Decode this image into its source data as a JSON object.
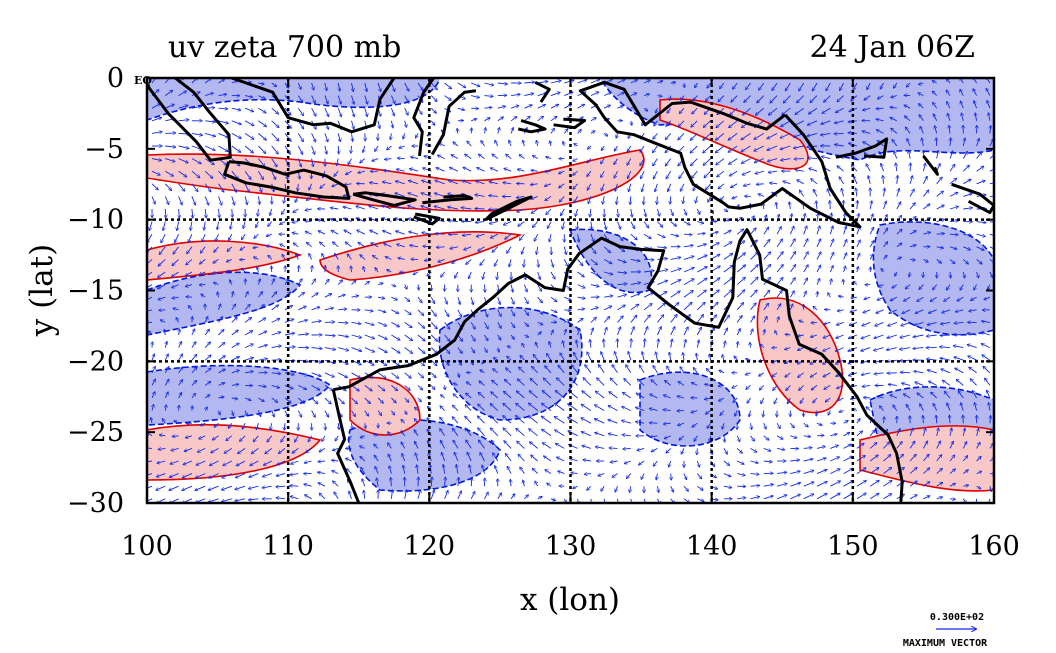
{
  "title_left": "uv zeta 700 mb",
  "title_right": "24 Jan 06Z",
  "equator_label": "EQ",
  "xaxis": {
    "label": "x (lon)",
    "range": [
      100,
      160
    ],
    "ticks": [
      {
        "value": 100,
        "label": "100"
      },
      {
        "value": 110,
        "label": "110"
      },
      {
        "value": 120,
        "label": "120"
      },
      {
        "value": 130,
        "label": "130"
      },
      {
        "value": 140,
        "label": "140"
      },
      {
        "value": 150,
        "label": "150"
      },
      {
        "value": 160,
        "label": "160"
      }
    ]
  },
  "yaxis": {
    "label": "y (lat)",
    "range": [
      -30,
      0
    ],
    "ticks": [
      {
        "value": 0,
        "label": "0"
      },
      {
        "value": -5,
        "label": "−5"
      },
      {
        "value": -10,
        "label": "−10"
      },
      {
        "value": -15,
        "label": "−15"
      },
      {
        "value": -20,
        "label": "−20"
      },
      {
        "value": -25,
        "label": "−25"
      },
      {
        "value": -30,
        "label": "−30"
      }
    ]
  },
  "vector_key": {
    "value_label": "0.300E+02",
    "caption": "MAXIMUM VECTOR"
  },
  "colors": {
    "positive_fill": "#f8c8c8",
    "positive_line": "#e00000",
    "negative_fill": "#b4b8f0",
    "negative_line": "#0018e0",
    "vector": "#1028e8",
    "coast": "#000000",
    "grid": "#000000"
  },
  "map_data": {
    "gridlines_lon": [
      110,
      120,
      130,
      140,
      150
    ],
    "gridlines_lat": [
      -10,
      -20
    ],
    "coastlines": [
      [
        [
          113.2,
          -22
        ],
        [
          113.6,
          -23.8
        ],
        [
          114.0,
          -25.5
        ],
        [
          113.5,
          -26.5
        ],
        [
          114.4,
          -28.5
        ],
        [
          115.0,
          -30
        ]
      ],
      [
        [
          113.2,
          -22
        ],
        [
          114.3,
          -21.8
        ],
        [
          116.5,
          -20.6
        ],
        [
          118.5,
          -20.3
        ],
        [
          120.5,
          -19.5
        ],
        [
          121.8,
          -18.5
        ],
        [
          122.5,
          -17.2
        ],
        [
          123.5,
          -16.3
        ],
        [
          124.5,
          -15.5
        ],
        [
          125.6,
          -14.5
        ],
        [
          126.8,
          -13.9
        ],
        [
          128.2,
          -14.8
        ],
        [
          129.5,
          -15
        ],
        [
          129.8,
          -13.5
        ],
        [
          130.6,
          -12.4
        ],
        [
          132.2,
          -11.3
        ],
        [
          133.5,
          -11.9
        ],
        [
          135,
          -12.1
        ],
        [
          136.6,
          -12.2
        ],
        [
          136.2,
          -13.6
        ],
        [
          135.5,
          -14.8
        ],
        [
          137,
          -16
        ],
        [
          138.8,
          -17.3
        ],
        [
          140.5,
          -17.6
        ],
        [
          141.5,
          -15.5
        ],
        [
          141.6,
          -13
        ],
        [
          142,
          -11.5
        ],
        [
          142.5,
          -10.7
        ],
        [
          143.4,
          -12.5
        ],
        [
          143.6,
          -14.2
        ],
        [
          145.3,
          -15
        ],
        [
          145.5,
          -16.8
        ],
        [
          146.2,
          -18.8
        ],
        [
          147.8,
          -19.5
        ],
        [
          149,
          -20.8
        ],
        [
          150.3,
          -22.5
        ],
        [
          151,
          -23.8
        ],
        [
          152.5,
          -25.2
        ],
        [
          153.1,
          -26.5
        ],
        [
          153.5,
          -28.5
        ],
        [
          153.4,
          -30
        ]
      ],
      [
        [
          145.2,
          -2.6
        ],
        [
          146.5,
          -4
        ],
        [
          147.8,
          -5.9
        ],
        [
          148.4,
          -7.8
        ],
        [
          149.5,
          -9.5
        ],
        [
          150.5,
          -10.5
        ],
        [
          149,
          -10.2
        ],
        [
          147,
          -9.2
        ],
        [
          145,
          -7.8
        ],
        [
          143.5,
          -8.9
        ],
        [
          142,
          -9.2
        ],
        [
          141.2,
          -9.1
        ],
        [
          140.8,
          -8.8
        ],
        [
          139.5,
          -8
        ],
        [
          138.7,
          -7.5
        ],
        [
          138.1,
          -6.3
        ],
        [
          137.8,
          -5.3
        ],
        [
          136,
          -4.6
        ],
        [
          134.5,
          -4
        ],
        [
          133.3,
          -3.8
        ],
        [
          132.4,
          -2.8
        ],
        [
          131.8,
          -1.9
        ],
        [
          130.7,
          -0.9
        ],
        [
          132.4,
          -0.3
        ],
        [
          133.8,
          -0.8
        ],
        [
          135.3,
          -3.3
        ],
        [
          137.2,
          -1.8
        ],
        [
          138.5,
          -1.7
        ],
        [
          140.8,
          -2.5
        ],
        [
          142.5,
          -3.2
        ],
        [
          143.9,
          -3.6
        ],
        [
          145.2,
          -2.6
        ]
      ],
      [
        [
          105.8,
          -5.9
        ],
        [
          106.9,
          -6
        ],
        [
          108.3,
          -6.3
        ],
        [
          109.8,
          -6.8
        ],
        [
          111.1,
          -6.5
        ],
        [
          112.7,
          -6.9
        ],
        [
          114.1,
          -7.7
        ],
        [
          114.3,
          -8.5
        ],
        [
          112.5,
          -8.4
        ],
        [
          110.5,
          -8.1
        ],
        [
          108.8,
          -7.7
        ],
        [
          107,
          -7.4
        ],
        [
          105.5,
          -6.8
        ],
        [
          105.8,
          -5.9
        ]
      ],
      [
        [
          100,
          -0.5
        ],
        [
          101.5,
          -2.5
        ],
        [
          103.5,
          -4.5
        ],
        [
          104.5,
          -5.8
        ],
        [
          105.9,
          -5.6
        ],
        [
          105.8,
          -4
        ],
        [
          104.5,
          -2.5
        ],
        [
          103.3,
          -1
        ],
        [
          102,
          0
        ]
      ],
      [
        [
          106,
          0
        ],
        [
          108.9,
          -1
        ],
        [
          110,
          -2.8
        ],
        [
          111.8,
          -3.3
        ],
        [
          113,
          -3.2
        ],
        [
          114.5,
          -3.8
        ],
        [
          116.1,
          -3.3
        ],
        [
          116.5,
          -1.5
        ],
        [
          117.5,
          0
        ]
      ],
      [
        [
          119.3,
          -5.5
        ],
        [
          119.5,
          -3.8
        ],
        [
          118.9,
          -2.8
        ],
        [
          119.6,
          -1
        ],
        [
          120.3,
          0
        ]
      ],
      [
        [
          120.2,
          -5.4
        ],
        [
          121,
          -4
        ],
        [
          121.4,
          -2
        ],
        [
          122.5,
          -1
        ],
        [
          123.3,
          -0.9
        ]
      ],
      [
        [
          114.6,
          -8.2
        ],
        [
          116,
          -8.6
        ],
        [
          117.5,
          -9
        ],
        [
          119,
          -8.6
        ],
        [
          117,
          -8.3
        ],
        [
          115.5,
          -8.1
        ],
        [
          114.6,
          -8.2
        ]
      ],
      [
        [
          119,
          -9.6
        ],
        [
          120.7,
          -9.9
        ],
        [
          120.2,
          -10.3
        ],
        [
          118.9,
          -9.8
        ]
      ],
      [
        [
          119.5,
          -8.8
        ],
        [
          121.5,
          -8.6
        ],
        [
          123,
          -8.5
        ],
        [
          122.5,
          -8.3
        ],
        [
          121,
          -8.4
        ]
      ],
      [
        [
          124,
          -10
        ],
        [
          125.4,
          -9.3
        ],
        [
          127.2,
          -8.4
        ],
        [
          126.2,
          -8.7
        ],
        [
          124.4,
          -9.6
        ],
        [
          124,
          -10
        ]
      ],
      [
        [
          150.8,
          -5.5
        ],
        [
          152.2,
          -5.6
        ],
        [
          152.4,
          -4.3
        ],
        [
          151.6,
          -4.8
        ],
        [
          150.2,
          -5.3
        ],
        [
          148.8,
          -5.6
        ]
      ],
      [
        [
          155,
          -5.5
        ],
        [
          156,
          -6.8
        ],
        [
          155.8,
          -6.3
        ]
      ],
      [
        [
          157,
          -7.5
        ],
        [
          159,
          -8.2
        ],
        [
          160,
          -9
        ],
        [
          159.7,
          -9.5
        ],
        [
          158.2,
          -8.7
        ]
      ],
      [
        [
          126.5,
          -3
        ],
        [
          127.5,
          -3.3
        ],
        [
          128.2,
          -3.6
        ],
        [
          127.2,
          -3.8
        ],
        [
          126.3,
          -3.6
        ]
      ],
      [
        [
          129.5,
          -2.9
        ],
        [
          131,
          -3
        ],
        [
          130.3,
          -3.5
        ],
        [
          128.8,
          -3.3
        ]
      ],
      [
        [
          127.5,
          -0.3
        ],
        [
          128.5,
          -0.8
        ],
        [
          127.9,
          -1.7
        ]
      ]
    ]
  }
}
